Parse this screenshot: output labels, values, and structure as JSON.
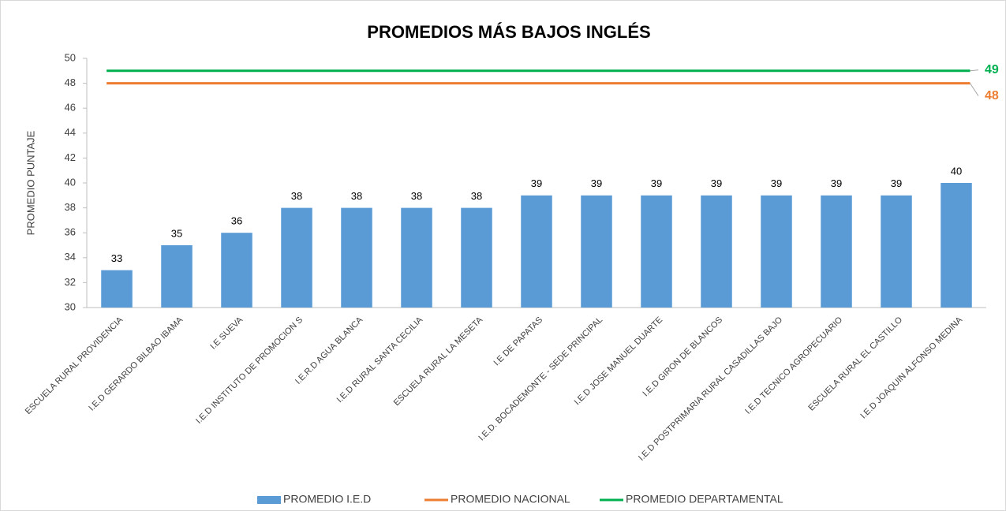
{
  "chart_data": {
    "type": "bar",
    "title": "PROMEDIOS MÁS BAJOS INGLÉS",
    "y_label": "PROMEDIO PUNTAJE",
    "categories": [
      "ESCUELA RURAL PROVIDENCIA",
      "I.E.D GERARDO BILBAO IBAMA",
      "I.E SUEVA",
      "I.E.D INSTITUTO DE PROMOCION S",
      "I.E.R.D AGUA BLANCA",
      "I.E.D RURAL SANTA CECILIA",
      "ESCUELA RURAL  LA MESETA",
      "I.E DE PAPATAS",
      "I.E.D. BOCADEMONTE - SEDE PRINCIPAL",
      "I.E.D JOSE MANUEL DUARTE",
      "I.E.D GIRON DE BLANCOS",
      "I.E.D POSTPRIMARIA RURAL CASADILLAS BAJO",
      "I.E.D TECNICO AGROPECUARIO",
      "ESCUELA RURAL EL CASTILLO",
      "I.E.D JOAQUIN ALFONSO MEDINA"
    ],
    "series": [
      {
        "name": "PROMEDIO I.E.D",
        "type": "bar",
        "color": "#5b9bd5",
        "values": [
          33,
          35,
          36,
          38,
          38,
          38,
          38,
          39,
          39,
          39,
          39,
          39,
          39,
          39,
          40
        ]
      },
      {
        "name": "PROMEDIO NACIONAL",
        "type": "line",
        "color": "#ed7d31",
        "values": [
          48,
          48,
          48,
          48,
          48,
          48,
          48,
          48,
          48,
          48,
          48,
          48,
          48,
          48,
          48
        ]
      },
      {
        "name": "PROMEDIO DEPARTAMENTAL",
        "type": "line",
        "color": "#00b050",
        "values": [
          49,
          49,
          49,
          49,
          49,
          49,
          49,
          49,
          49,
          49,
          49,
          49,
          49,
          49,
          49
        ]
      }
    ],
    "ylim": [
      30,
      50
    ],
    "yticks": [
      30,
      32,
      34,
      36,
      38,
      40,
      42,
      44,
      46,
      48,
      50
    ],
    "legend": "bottom"
  }
}
